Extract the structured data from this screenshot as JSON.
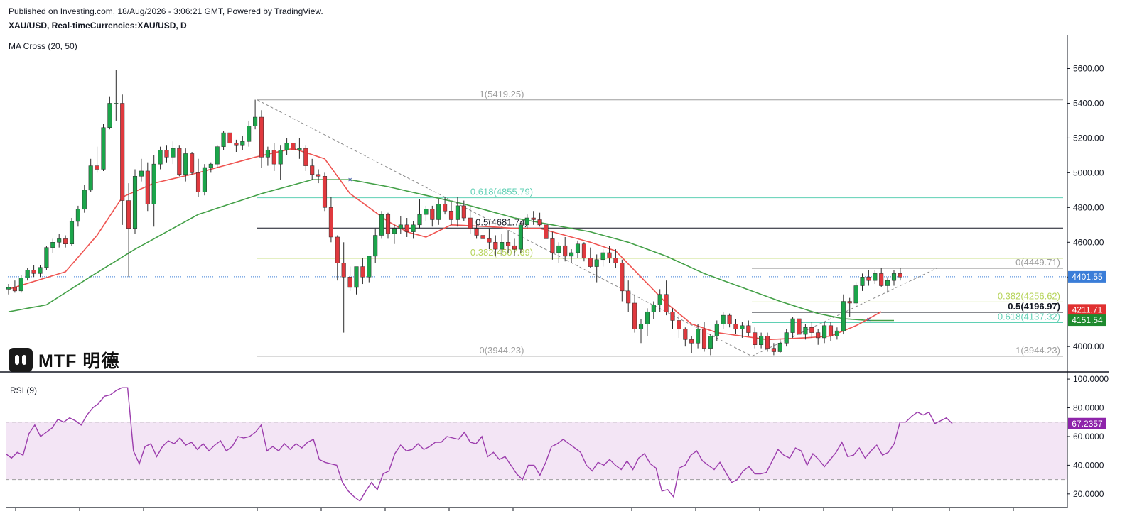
{
  "header": {
    "published": "Published on Investing.com, 18/Aug/2026 - 3:06:21 GMT, Powered by TradingView.",
    "symbol": "XAU/USD, Real-timeCurrencies:XAU/USD, D",
    "ma_label": "MA Cross (20, 50)",
    "rsi_label": "RSI (9)"
  },
  "logo": {
    "text": "MTF 明德"
  },
  "colors": {
    "up": "#26a69a",
    "up_fill": "#1ba54a",
    "down": "#e0393e",
    "ma_fast": "#ef5350",
    "ma_slow": "#43a047",
    "rsi": "#9c3dad",
    "rsi_band": "#f3e5f5",
    "fib_teal": "#5fd0b4",
    "fib_lime": "#b7d45b",
    "fib_gray": "#9e9e9e",
    "fib_black": "#131722",
    "price_tag": "#3a7dd8",
    "red_tag": "#e03030",
    "green_tag": "#1e8a2e",
    "rsi_tag": "#8e24aa"
  },
  "chart_data": [
    {
      "type": "candlestick",
      "title": "XAU/USD, D",
      "ylim": [
        3870,
        5790
      ],
      "y_ticks": [
        "5600.00",
        "5400.00",
        "5200.00",
        "5000.00",
        "4800.00",
        "4600.00",
        "4400.00",
        "4000.00"
      ],
      "candles": [
        [
          4330,
          4360,
          4300,
          4340
        ],
        [
          4340,
          4380,
          4310,
          4320
        ],
        [
          4320,
          4410,
          4310,
          4395
        ],
        [
          4395,
          4450,
          4380,
          4440
        ],
        [
          4440,
          4470,
          4400,
          4420
        ],
        [
          4420,
          4470,
          4400,
          4455
        ],
        [
          4455,
          4580,
          4440,
          4570
        ],
        [
          4570,
          4620,
          4540,
          4600
        ],
        [
          4600,
          4650,
          4570,
          4620
        ],
        [
          4620,
          4640,
          4570,
          4590
        ],
        [
          4590,
          4740,
          4580,
          4720
        ],
        [
          4720,
          4810,
          4690,
          4790
        ],
        [
          4790,
          4930,
          4770,
          4900
        ],
        [
          4900,
          5080,
          4890,
          5040
        ],
        [
          5040,
          5150,
          5000,
          5020
        ],
        [
          5020,
          5280,
          5010,
          5260
        ],
        [
          5260,
          5440,
          5250,
          5400
        ],
        [
          5400,
          5590,
          5300,
          5400
        ],
        [
          5400,
          5450,
          4700,
          4840
        ],
        [
          4840,
          4940,
          4400,
          4680
        ],
        [
          4680,
          5020,
          4650,
          4980
        ],
        [
          4980,
          5080,
          4950,
          5010
        ],
        [
          5010,
          5060,
          4780,
          4820
        ],
        [
          4820,
          5100,
          4690,
          5050
        ],
        [
          5050,
          5150,
          5020,
          5130
        ],
        [
          5130,
          5160,
          5060,
          5090
        ],
        [
          5090,
          5180,
          5050,
          5140
        ],
        [
          5140,
          5160,
          4980,
          4990
        ],
        [
          4990,
          5140,
          4950,
          5110
        ],
        [
          5110,
          5120,
          4990,
          5000
        ],
        [
          5000,
          5080,
          4860,
          4890
        ],
        [
          4890,
          5050,
          4870,
          5030
        ],
        [
          5030,
          5060,
          5000,
          5050
        ],
        [
          5050,
          5160,
          5030,
          5150
        ],
        [
          5150,
          5240,
          5130,
          5230
        ],
        [
          5230,
          5250,
          5140,
          5170
        ],
        [
          5170,
          5190,
          5120,
          5160
        ],
        [
          5160,
          5210,
          5130,
          5180
        ],
        [
          5180,
          5300,
          5150,
          5270
        ],
        [
          5270,
          5420,
          5250,
          5320
        ],
        [
          5320,
          5360,
          5030,
          5090
        ],
        [
          5090,
          5150,
          5040,
          5130
        ],
        [
          5130,
          5170,
          5010,
          5050
        ],
        [
          5050,
          5160,
          4960,
          5130
        ],
        [
          5130,
          5200,
          5100,
          5170
        ],
        [
          5170,
          5240,
          5110,
          5130
        ],
        [
          5130,
          5200,
          5080,
          5140
        ],
        [
          5140,
          5160,
          5010,
          5040
        ],
        [
          5040,
          5080,
          4960,
          4990
        ],
        [
          4990,
          5020,
          4940,
          4980
        ],
        [
          4980,
          5000,
          4780,
          4800
        ],
        [
          4800,
          4860,
          4600,
          4630
        ],
        [
          4630,
          4640,
          4380,
          4480
        ],
        [
          4480,
          4600,
          4080,
          4400
        ],
        [
          4400,
          4460,
          4320,
          4340
        ],
        [
          4340,
          4450,
          4300,
          4460
        ],
        [
          4460,
          4510,
          4360,
          4400
        ],
        [
          4400,
          4520,
          4370,
          4520
        ],
        [
          4520,
          4680,
          4480,
          4640
        ],
        [
          4640,
          4780,
          4620,
          4760
        ],
        [
          4760,
          4770,
          4620,
          4650
        ],
        [
          4650,
          4700,
          4590,
          4680
        ],
        [
          4680,
          4750,
          4650,
          4700
        ],
        [
          4700,
          4740,
          4630,
          4660
        ],
        [
          4660,
          4720,
          4620,
          4700
        ],
        [
          4700,
          4850,
          4680,
          4760
        ],
        [
          4760,
          4810,
          4720,
          4790
        ],
        [
          4790,
          4810,
          4690,
          4730
        ],
        [
          4730,
          4850,
          4700,
          4820
        ],
        [
          4820,
          4860,
          4760,
          4780
        ],
        [
          4780,
          4830,
          4700,
          4730
        ],
        [
          4730,
          4860,
          4690,
          4810
        ],
        [
          4810,
          4840,
          4720,
          4740
        ],
        [
          4740,
          4800,
          4650,
          4680
        ],
        [
          4680,
          4720,
          4620,
          4640
        ],
        [
          4640,
          4700,
          4580,
          4620
        ],
        [
          4620,
          4680,
          4560,
          4600
        ],
        [
          4600,
          4640,
          4520,
          4560
        ],
        [
          4560,
          4650,
          4520,
          4600
        ],
        [
          4600,
          4670,
          4540,
          4580
        ],
        [
          4580,
          4620,
          4520,
          4560
        ],
        [
          4560,
          4720,
          4540,
          4700
        ],
        [
          4700,
          4760,
          4680,
          4740
        ],
        [
          4740,
          4780,
          4700,
          4730
        ],
        [
          4730,
          4770,
          4690,
          4700
        ],
        [
          4700,
          4720,
          4600,
          4620
        ],
        [
          4620,
          4660,
          4500,
          4540
        ],
        [
          4540,
          4600,
          4480,
          4580
        ],
        [
          4580,
          4630,
          4490,
          4520
        ],
        [
          4520,
          4560,
          4480,
          4540
        ],
        [
          4540,
          4610,
          4510,
          4590
        ],
        [
          4590,
          4600,
          4490,
          4510
        ],
        [
          4510,
          4570,
          4450,
          4460
        ],
        [
          4460,
          4530,
          4370,
          4500
        ],
        [
          4500,
          4560,
          4460,
          4540
        ],
        [
          4540,
          4580,
          4480,
          4510
        ],
        [
          4510,
          4560,
          4450,
          4480
        ],
        [
          4480,
          4500,
          4260,
          4320
        ],
        [
          4320,
          4380,
          4200,
          4250
        ],
        [
          4250,
          4300,
          4080,
          4100
        ],
        [
          4100,
          4160,
          4020,
          4130
        ],
        [
          4130,
          4220,
          4060,
          4200
        ],
        [
          4200,
          4260,
          4160,
          4240
        ],
        [
          4240,
          4330,
          4200,
          4300
        ],
        [
          4300,
          4380,
          4180,
          4200
        ],
        [
          4200,
          4220,
          4100,
          4150
        ],
        [
          4150,
          4180,
          4050,
          4100
        ],
        [
          4100,
          4110,
          4000,
          4040
        ],
        [
          4040,
          4060,
          3960,
          4020
        ],
        [
          4020,
          4130,
          3990,
          4100
        ],
        [
          4100,
          4140,
          3970,
          3990
        ],
        [
          3990,
          4070,
          3950,
          4060
        ],
        [
          4060,
          4150,
          4030,
          4130
        ],
        [
          4130,
          4200,
          4100,
          4180
        ],
        [
          4180,
          4190,
          4110,
          4130
        ],
        [
          4130,
          4160,
          4070,
          4100
        ],
        [
          4100,
          4140,
          4050,
          4120
        ],
        [
          4120,
          4150,
          4060,
          4080
        ],
        [
          4080,
          4110,
          3990,
          4010
        ],
        [
          4010,
          4080,
          3990,
          4060
        ],
        [
          4060,
          4080,
          3970,
          3990
        ],
        [
          3990,
          4020,
          3950,
          3970
        ],
        [
          3970,
          4040,
          3960,
          4020
        ],
        [
          4020,
          4100,
          4000,
          4080
        ],
        [
          4080,
          4170,
          4050,
          4160
        ],
        [
          4160,
          4190,
          4050,
          4070
        ],
        [
          4070,
          4130,
          4040,
          4110
        ],
        [
          4110,
          4140,
          4050,
          4080
        ],
        [
          4080,
          4100,
          4010,
          4050
        ],
        [
          4050,
          4140,
          4020,
          4120
        ],
        [
          4120,
          4140,
          4030,
          4060
        ],
        [
          4060,
          4110,
          4040,
          4090
        ],
        [
          4090,
          4300,
          4070,
          4260
        ],
        [
          4260,
          4280,
          4170,
          4250
        ],
        [
          4250,
          4370,
          4230,
          4350
        ],
        [
          4350,
          4420,
          4320,
          4400
        ],
        [
          4400,
          4440,
          4350,
          4380
        ],
        [
          4380,
          4440,
          4360,
          4420
        ],
        [
          4420,
          4450,
          4340,
          4350
        ],
        [
          4350,
          4400,
          4310,
          4380
        ],
        [
          4380,
          4440,
          4350,
          4420
        ],
        [
          4420,
          4450,
          4380,
          4400
        ]
      ],
      "ma_fast_anchors": [
        [
          0,
          4330
        ],
        [
          9,
          4430
        ],
        [
          14,
          4640
        ],
        [
          18,
          4860
        ],
        [
          23,
          4940
        ],
        [
          30,
          5000
        ],
        [
          39,
          5090
        ],
        [
          45,
          5140
        ],
        [
          50,
          5080
        ],
        [
          54,
          4880
        ],
        [
          60,
          4720
        ],
        [
          63,
          4660
        ],
        [
          66,
          4630
        ],
        [
          70,
          4700
        ],
        [
          76,
          4690
        ],
        [
          80,
          4680
        ],
        [
          84,
          4680
        ],
        [
          88,
          4640
        ],
        [
          92,
          4600
        ],
        [
          96,
          4550
        ],
        [
          100,
          4400
        ],
        [
          104,
          4250
        ],
        [
          108,
          4130
        ],
        [
          112,
          4080
        ],
        [
          116,
          4060
        ],
        [
          120,
          4040
        ],
        [
          126,
          4050
        ],
        [
          130,
          4060
        ],
        [
          134,
          4120
        ],
        [
          138,
          4200
        ]
      ],
      "ma_slow_anchors": [
        [
          0,
          4200
        ],
        [
          6,
          4240
        ],
        [
          12,
          4380
        ],
        [
          20,
          4560
        ],
        [
          30,
          4760
        ],
        [
          40,
          4880
        ],
        [
          48,
          4960
        ],
        [
          54,
          4960
        ],
        [
          60,
          4920
        ],
        [
          66,
          4870
        ],
        [
          72,
          4820
        ],
        [
          80,
          4740
        ],
        [
          86,
          4700
        ],
        [
          92,
          4660
        ],
        [
          98,
          4600
        ],
        [
          104,
          4520
        ],
        [
          110,
          4420
        ],
        [
          116,
          4340
        ],
        [
          122,
          4260
        ],
        [
          128,
          4190
        ],
        [
          132,
          4160
        ],
        [
          136,
          4150
        ],
        [
          140,
          4150
        ]
      ],
      "cross_markers": [
        [
          54,
          4960
        ],
        [
          136,
          4155
        ]
      ],
      "fib_left": {
        "levels": [
          {
            "label": "1(5419.25)",
            "value": 5419.25,
            "color": "#9e9e9e"
          },
          {
            "label": "0.618(4855.79)",
            "value": 4855.79,
            "color": "#5fd0b4"
          },
          {
            "label": "0.5(4681.74)",
            "value": 4681.74,
            "color": "#131722"
          },
          {
            "label": "0.382(4507.69)",
            "value": 4507.69,
            "color": "#b7d45b"
          },
          {
            "label": "0(3944.23)",
            "value": 3944.23,
            "color": "#9e9e9e"
          }
        ]
      },
      "fib_right": {
        "levels": [
          {
            "label": "0(4449.71)",
            "value": 4449.71,
            "color": "#9e9e9e"
          },
          {
            "label": "0.382(4256.62)",
            "value": 4256.62,
            "color": "#b7d45b"
          },
          {
            "label": "0.5(4196.97)",
            "value": 4196.97,
            "color": "#131722"
          },
          {
            "label": "0.618(4137.32)",
            "value": 4137.32,
            "color": "#5fd0b4"
          },
          {
            "label": "1(3944.23)",
            "value": 3944.23,
            "color": "#9e9e9e"
          }
        ]
      },
      "last_price": "4401.55",
      "last_price_value": 4401.55,
      "ma_fast_last": "4211.71",
      "ma_fast_last_value": 4211.71,
      "ma_slow_last": "4151.54",
      "ma_slow_last_value": 4151.54
    },
    {
      "type": "line",
      "title": "RSI (9)",
      "ylim": [
        12,
        104
      ],
      "y_ticks": [
        "100.0000",
        "80.0000",
        "60.0000",
        "40.0000",
        "20.0000"
      ],
      "band": [
        30,
        70
      ],
      "values": [
        48,
        45,
        49,
        47,
        62,
        68,
        60,
        63,
        66,
        72,
        70,
        73,
        71,
        68,
        75,
        80,
        83,
        88,
        89,
        92,
        94,
        94,
        50,
        41,
        53,
        55,
        46,
        53,
        57,
        55,
        59,
        54,
        56,
        51,
        55,
        50,
        54,
        57,
        50,
        53,
        60,
        59,
        60,
        63,
        68,
        50,
        53,
        50,
        55,
        51,
        55,
        52,
        56,
        58,
        44,
        42,
        41,
        40,
        28,
        22,
        18,
        15,
        22,
        28,
        23,
        34,
        36,
        48,
        54,
        50,
        51,
        55,
        51,
        53,
        56,
        56,
        60,
        59,
        58,
        63,
        56,
        55,
        60,
        46,
        49,
        44,
        46,
        40,
        34,
        30,
        40,
        40,
        33,
        42,
        53,
        55,
        58,
        55,
        52,
        49,
        40,
        36,
        42,
        40,
        44,
        40,
        37,
        43,
        37,
        45,
        48,
        41,
        38,
        22,
        23,
        18,
        38,
        40,
        47,
        50,
        43,
        40,
        37,
        42,
        35,
        28,
        30,
        36,
        39,
        34,
        34,
        35,
        43,
        51,
        47,
        45,
        52,
        50,
        40,
        48,
        44,
        39,
        44,
        49,
        56,
        46,
        47,
        52,
        45,
        50,
        54,
        47,
        49,
        55,
        70,
        70,
        74,
        77,
        75,
        77,
        69,
        71,
        73,
        69
      ]
    }
  ]
}
